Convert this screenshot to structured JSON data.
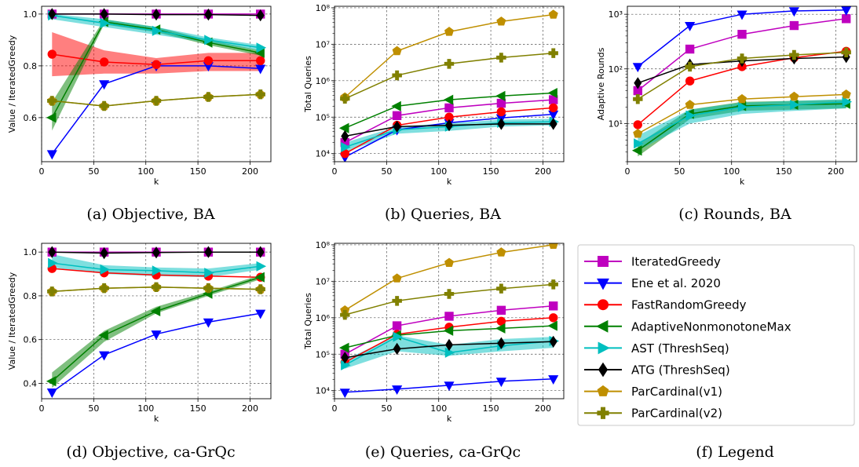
{
  "series": [
    {
      "name": "IteratedGreedy",
      "color": "#bf00bf",
      "marker": "square"
    },
    {
      "name": "Ene et al. 2020",
      "color": "#0000ff",
      "marker": "tri-down"
    },
    {
      "name": "FastRandomGreedy",
      "color": "#ff0000",
      "marker": "circle"
    },
    {
      "name": "AdaptiveNonmonotoneMax",
      "color": "#008000",
      "marker": "tri-left"
    },
    {
      "name": "AST (ThreshSeq)",
      "color": "#00bfbf",
      "marker": "tri-right"
    },
    {
      "name": "ATG (ThreshSeq)",
      "color": "#000000",
      "marker": "diamond"
    },
    {
      "name": "ParCardinal(v1)",
      "color": "#bf8f00",
      "marker": "pentagon"
    },
    {
      "name": "ParCardinal(v2)",
      "color": "#808000",
      "marker": "plus"
    }
  ],
  "captions": {
    "a": "(a) Objective, BA",
    "b": "(b) Queries, BA",
    "c": "(c) Rounds, BA",
    "d": "(d) Objective, ca-GrQc",
    "e": "(e) Queries, ca-GrQc",
    "f": "(f) Legend"
  },
  "chart_data": [
    {
      "id": "a",
      "type": "line",
      "xlabel": "k",
      "ylabel": "Value / IteratedGreedy",
      "xlim": [
        0,
        220
      ],
      "ylim": [
        0.43,
        1.03
      ],
      "yscale": "linear",
      "xticks": [
        0,
        50,
        100,
        150,
        200
      ],
      "yticks": [
        0.6,
        0.8,
        1.0
      ],
      "x": [
        10,
        60,
        110,
        160,
        210
      ],
      "series": [
        {
          "name": "IteratedGreedy",
          "values": [
            1.0,
            1.0,
            1.0,
            1.0,
            1.0
          ]
        },
        {
          "name": "Ene et al. 2020",
          "values": [
            0.46,
            0.73,
            0.8,
            0.8,
            0.79
          ]
        },
        {
          "name": "FastRandomGreedy",
          "values": [
            0.845,
            0.815,
            0.805,
            0.82,
            0.82
          ],
          "band": [
            [
              0.76,
              0.93
            ],
            [
              0.77,
              0.86
            ],
            [
              0.77,
              0.83
            ],
            [
              0.78,
              0.85
            ],
            [
              0.78,
              0.85
            ]
          ]
        },
        {
          "name": "AdaptiveNonmonotoneMax",
          "values": [
            0.6,
            0.97,
            0.94,
            0.89,
            0.85
          ],
          "band": [
            [
              0.55,
              0.66
            ],
            [
              0.96,
              0.98
            ],
            [
              0.93,
              0.95
            ],
            [
              0.88,
              0.9
            ],
            [
              0.84,
              0.86
            ]
          ]
        },
        {
          "name": "AST (ThreshSeq)",
          "values": [
            0.995,
            0.965,
            0.935,
            0.9,
            0.87
          ],
          "band": [
            [
              0.98,
              1.0
            ],
            [
              0.95,
              0.98
            ],
            [
              0.92,
              0.95
            ],
            [
              0.89,
              0.91
            ],
            [
              0.86,
              0.88
            ]
          ]
        },
        {
          "name": "ATG (ThreshSeq)",
          "values": [
            1.0,
            1.0,
            0.998,
            0.998,
            0.995
          ]
        },
        {
          "name": "ParCardinal(v1)",
          "values": [
            0.665,
            0.645,
            0.665,
            0.68,
            0.69
          ]
        },
        {
          "name": "ParCardinal(v2)",
          "values": [
            0.665,
            0.645,
            0.665,
            0.68,
            0.69
          ]
        }
      ]
    },
    {
      "id": "b",
      "type": "line",
      "xlabel": "k",
      "ylabel": "Total Queries",
      "xlim": [
        0,
        220
      ],
      "ylim": [
        6000,
        110000000
      ],
      "yscale": "log",
      "xticks": [
        0,
        50,
        100,
        150,
        200
      ],
      "yticks": [
        10000,
        100000,
        1000000,
        10000000,
        100000000
      ],
      "yticklabels": [
        "10⁴",
        "10⁵",
        "10⁶",
        "10⁷",
        "10⁸"
      ],
      "x": [
        10,
        60,
        110,
        160,
        210
      ],
      "series": [
        {
          "name": "IteratedGreedy",
          "values": [
            20000,
            110000,
            180000,
            240000,
            300000
          ]
        },
        {
          "name": "Ene et al. 2020",
          "values": [
            8000,
            45000,
            70000,
            95000,
            120000
          ]
        },
        {
          "name": "FastRandomGreedy",
          "values": [
            10000,
            60000,
            100000,
            140000,
            180000
          ]
        },
        {
          "name": "AdaptiveNonmonotoneMax",
          "values": [
            50000,
            200000,
            300000,
            380000,
            460000
          ]
        },
        {
          "name": "AST (ThreshSeq)",
          "values": [
            15000,
            45000,
            55000,
            70000,
            75000
          ],
          "band": [
            [
              11000,
              20000
            ],
            [
              35000,
              55000
            ],
            [
              42000,
              68000
            ],
            [
              55000,
              85000
            ],
            [
              60000,
              90000
            ]
          ]
        },
        {
          "name": "ATG (ThreshSeq)",
          "values": [
            30000,
            55000,
            60000,
            65000,
            65000
          ]
        },
        {
          "name": "ParCardinal(v1)",
          "values": [
            350000,
            6500000,
            22000000,
            42000000,
            65000000
          ]
        },
        {
          "name": "ParCardinal(v2)",
          "values": [
            320000,
            1400000,
            2900000,
            4300000,
            5700000
          ]
        }
      ]
    },
    {
      "id": "c",
      "type": "line",
      "xlabel": "k",
      "ylabel": "Adaptive Rounds",
      "xlim": [
        0,
        220
      ],
      "ylim": [
        2,
        1400
      ],
      "yscale": "log",
      "xticks": [
        0,
        50,
        100,
        150,
        200
      ],
      "yticks": [
        10,
        100,
        1000
      ],
      "yticklabels": [
        "10¹",
        "10²",
        "10³"
      ],
      "x": [
        10,
        60,
        110,
        160,
        210
      ],
      "series": [
        {
          "name": "IteratedGreedy",
          "values": [
            40,
            230,
            430,
            620,
            830
          ]
        },
        {
          "name": "Ene et al. 2020",
          "values": [
            110,
            620,
            1000,
            1150,
            1200
          ]
        },
        {
          "name": "FastRandomGreedy",
          "values": [
            9.5,
            60,
            110,
            160,
            210
          ]
        },
        {
          "name": "AdaptiveNonmonotoneMax",
          "values": [
            3.2,
            15,
            21,
            22,
            23
          ],
          "band": [
            [
              2.5,
              4.2
            ],
            [
              12,
              18
            ],
            [
              17,
              25
            ],
            [
              18,
              26
            ],
            [
              19,
              27
            ]
          ]
        },
        {
          "name": "AST (ThreshSeq)",
          "values": [
            4.3,
            14,
            20,
            22,
            25
          ],
          "band": [
            [
              3.2,
              6
            ],
            [
              10,
              18
            ],
            [
              15,
              24
            ],
            [
              17,
              26
            ],
            [
              19,
              28
            ]
          ]
        },
        {
          "name": "ATG (ThreshSeq)",
          "values": [
            55,
            120,
            140,
            155,
            165
          ]
        },
        {
          "name": "ParCardinal(v1)",
          "values": [
            6.5,
            22,
            28,
            31,
            34
          ]
        },
        {
          "name": "ParCardinal(v2)",
          "values": [
            28,
            110,
            155,
            180,
            200
          ]
        }
      ]
    },
    {
      "id": "d",
      "type": "line",
      "xlabel": "k",
      "ylabel": "Value / IteratedGreedy",
      "xlim": [
        0,
        220
      ],
      "ylim": [
        0.33,
        1.04
      ],
      "yscale": "linear",
      "xticks": [
        0,
        50,
        100,
        150,
        200
      ],
      "yticks": [
        0.4,
        0.6,
        0.8,
        1.0
      ],
      "x": [
        10,
        60,
        110,
        160,
        210
      ],
      "series": [
        {
          "name": "IteratedGreedy",
          "values": [
            1.0,
            1.0,
            1.0,
            1.0,
            1.0
          ]
        },
        {
          "name": "Ene et al. 2020",
          "values": [
            0.36,
            0.53,
            0.625,
            0.68,
            0.72
          ]
        },
        {
          "name": "FastRandomGreedy",
          "values": [
            0.925,
            0.905,
            0.895,
            0.89,
            0.885
          ]
        },
        {
          "name": "AdaptiveNonmonotoneMax",
          "values": [
            0.41,
            0.62,
            0.73,
            0.81,
            0.885
          ],
          "band": [
            [
              0.38,
              0.45
            ],
            [
              0.59,
              0.64
            ],
            [
              0.72,
              0.75
            ],
            [
              0.8,
              0.82
            ],
            [
              0.875,
              0.895
            ]
          ]
        },
        {
          "name": "AST (ThreshSeq)",
          "values": [
            0.95,
            0.92,
            0.915,
            0.905,
            0.935
          ],
          "band": [
            [
              0.93,
              0.99
            ],
            [
              0.9,
              0.94
            ],
            [
              0.89,
              0.93
            ],
            [
              0.885,
              0.925
            ],
            [
              0.92,
              0.95
            ]
          ]
        },
        {
          "name": "ATG (ThreshSeq)",
          "values": [
            1.0,
            0.995,
            0.998,
            1.0,
            1.0
          ]
        },
        {
          "name": "ParCardinal(v1)",
          "values": [
            0.82,
            0.835,
            0.84,
            0.835,
            0.83
          ]
        },
        {
          "name": "ParCardinal(v2)",
          "values": [
            0.82,
            0.835,
            0.84,
            0.835,
            0.83
          ]
        }
      ]
    },
    {
      "id": "e",
      "type": "line",
      "xlabel": "k",
      "ylabel": "Total Queries",
      "xlim": [
        0,
        220
      ],
      "ylim": [
        6000,
        110000000
      ],
      "yscale": "log",
      "xticks": [
        0,
        50,
        100,
        150,
        200
      ],
      "yticks": [
        10000,
        100000,
        1000000,
        10000000,
        100000000
      ],
      "yticklabels": [
        "10⁴",
        "10⁵",
        "10⁶",
        "10⁷",
        "10⁸"
      ],
      "x": [
        10,
        60,
        110,
        160,
        210
      ],
      "series": [
        {
          "name": "IteratedGreedy",
          "values": [
            100000,
            600000,
            1100000,
            1600000,
            2100000
          ]
        },
        {
          "name": "Ene et al. 2020",
          "values": [
            9000,
            11000,
            14000,
            18000,
            21000
          ]
        },
        {
          "name": "FastRandomGreedy",
          "values": [
            60000,
            350000,
            550000,
            800000,
            1000000
          ]
        },
        {
          "name": "AdaptiveNonmonotoneMax",
          "values": [
            150000,
            330000,
            440000,
            510000,
            600000
          ]
        },
        {
          "name": "AST (ThreshSeq)",
          "values": [
            50000,
            300000,
            110000,
            170000,
            230000
          ],
          "band": [
            [
              40000,
              70000
            ],
            [
              120000,
              330000
            ],
            [
              90000,
              180000
            ],
            [
              120000,
              260000
            ],
            [
              150000,
              300000
            ]
          ]
        },
        {
          "name": "ATG (ThreshSeq)",
          "values": [
            80000,
            140000,
            180000,
            200000,
            220000
          ]
        },
        {
          "name": "ParCardinal(v1)",
          "values": [
            1600000,
            12000000,
            32000000,
            62000000,
            100000000
          ]
        },
        {
          "name": "ParCardinal(v2)",
          "values": [
            1200000,
            2900000,
            4500000,
            6300000,
            8200000
          ]
        }
      ]
    }
  ]
}
